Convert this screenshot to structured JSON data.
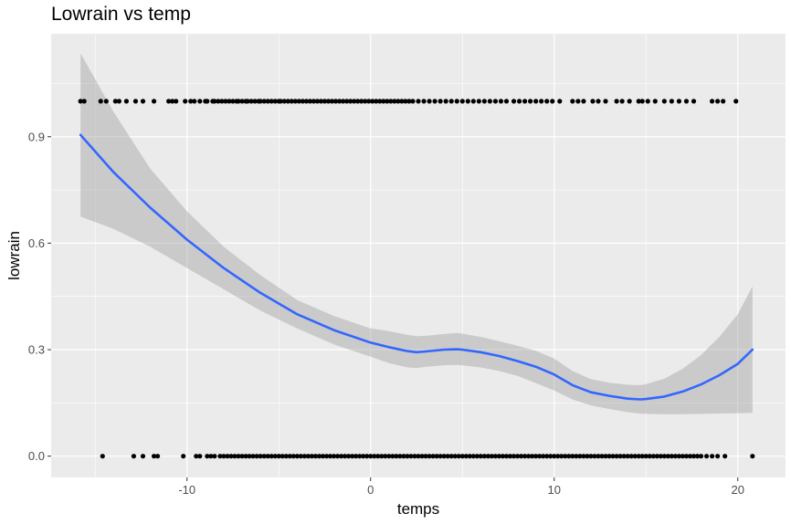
{
  "chart_data": {
    "type": "scatter",
    "title": "Lowrain vs temp",
    "xlabel": "temps",
    "ylabel": "lowrain",
    "xlim": [
      -17.4,
      22.6
    ],
    "ylim": [
      -0.06,
      1.19
    ],
    "x_ticks": [
      -10,
      0,
      10,
      20
    ],
    "x_tick_labels": [
      "-10",
      "0",
      "10",
      "20"
    ],
    "y_ticks": [
      0.0,
      0.3,
      0.6,
      0.9
    ],
    "y_tick_labels": [
      "0.0",
      "0.3",
      "0.6",
      "0.9"
    ],
    "grid": true,
    "legend": "none",
    "colors": {
      "panel": "#ebebeb",
      "grid": "#ffffff",
      "points": "#000000",
      "smooth_line": "#3366ff",
      "ribbon": "#999999"
    },
    "points_y1": [
      -15.8,
      -15.6,
      -14.7,
      -14.4,
      -13.9,
      -13.7,
      -13.3,
      -12.8,
      -12.4,
      -11.8,
      -11.0,
      -10.8,
      -10.6,
      -10.1,
      -9.8,
      -9.6,
      -9.3,
      -9.0,
      -8.9,
      -8.6,
      -8.5,
      -8.3,
      -8.1,
      -7.9,
      -7.7,
      -7.5,
      -7.3,
      -7.2,
      -7.0,
      -6.8,
      -6.7,
      -6.5,
      -6.3,
      -6.1,
      -6.0,
      -5.8,
      -5.6,
      -5.4,
      -5.2,
      -5.0,
      -4.9,
      -4.7,
      -4.5,
      -4.3,
      -4.1,
      -3.9,
      -3.7,
      -3.5,
      -3.3,
      -3.1,
      -2.9,
      -2.7,
      -2.5,
      -2.3,
      -2.1,
      -1.9,
      -1.7,
      -1.5,
      -1.3,
      -1.1,
      -0.9,
      -0.7,
      -0.5,
      -0.3,
      -0.1,
      0.1,
      0.3,
      0.5,
      0.7,
      0.9,
      1.1,
      1.3,
      1.5,
      1.7,
      1.9,
      2.1,
      2.3,
      2.6,
      2.9,
      3.2,
      3.5,
      3.8,
      4.1,
      4.4,
      4.7,
      5.0,
      5.3,
      5.6,
      5.9,
      6.2,
      6.5,
      6.8,
      7.1,
      7.4,
      7.8,
      8.1,
      8.4,
      8.7,
      9.0,
      9.3,
      9.6,
      9.9,
      10.3,
      11.0,
      11.3,
      11.6,
      12.1,
      12.4,
      12.8,
      13.4,
      13.7,
      14.1,
      14.6,
      14.8,
      15.1,
      15.5,
      16.0,
      16.4,
      16.8,
      17.2,
      17.6,
      18.6,
      18.9,
      19.2,
      19.9
    ],
    "points_y0": [
      -14.6,
      -12.9,
      -12.4,
      -11.8,
      -11.6,
      -10.2,
      -9.5,
      -9.3,
      -8.9,
      -8.7,
      -8.5,
      -8.2,
      -8.0,
      -7.8,
      -7.6,
      -7.4,
      -7.2,
      -7.0,
      -6.8,
      -6.6,
      -6.4,
      -6.2,
      -6.0,
      -5.8,
      -5.6,
      -5.4,
      -5.2,
      -5.0,
      -4.8,
      -4.6,
      -4.4,
      -4.2,
      -4.0,
      -3.8,
      -3.6,
      -3.4,
      -3.2,
      -3.0,
      -2.8,
      -2.6,
      -2.4,
      -2.2,
      -2.0,
      -1.8,
      -1.6,
      -1.4,
      -1.2,
      -1.0,
      -0.8,
      -0.6,
      -0.4,
      -0.2,
      0.0,
      0.2,
      0.4,
      0.6,
      0.8,
      1.0,
      1.2,
      1.4,
      1.6,
      1.8,
      2.0,
      2.2,
      2.4,
      2.6,
      2.8,
      3.0,
      3.2,
      3.4,
      3.6,
      3.8,
      4.0,
      4.2,
      4.4,
      4.6,
      4.8,
      5.0,
      5.2,
      5.4,
      5.6,
      5.8,
      6.0,
      6.2,
      6.4,
      6.6,
      6.8,
      7.0,
      7.2,
      7.4,
      7.6,
      7.8,
      8.0,
      8.2,
      8.4,
      8.6,
      8.8,
      9.0,
      9.2,
      9.4,
      9.6,
      9.8,
      10.0,
      10.2,
      10.4,
      10.6,
      10.8,
      11.0,
      11.2,
      11.4,
      11.6,
      11.8,
      12.0,
      12.2,
      12.4,
      12.6,
      12.8,
      13.0,
      13.2,
      13.4,
      13.6,
      13.8,
      14.0,
      14.2,
      14.4,
      14.6,
      14.8,
      15.0,
      15.2,
      15.4,
      15.6,
      15.8,
      16.0,
      16.2,
      16.4,
      16.6,
      16.8,
      17.0,
      17.2,
      17.4,
      17.6,
      17.8,
      18.0,
      18.3,
      18.6,
      18.9,
      19.3,
      20.8
    ],
    "smooth": {
      "x": [
        -15.8,
        -14,
        -12,
        -10,
        -8,
        -6,
        -4,
        -2,
        0,
        1,
        2,
        2.5,
        3,
        4,
        4.7,
        5,
        6,
        7,
        8,
        9,
        10,
        11,
        12,
        13,
        14,
        14.7,
        15,
        16,
        17,
        18,
        19,
        20,
        20.8
      ],
      "y": [
        0.905,
        0.8,
        0.7,
        0.61,
        0.53,
        0.46,
        0.4,
        0.355,
        0.32,
        0.307,
        0.296,
        0.293,
        0.295,
        0.3,
        0.301,
        0.3,
        0.293,
        0.282,
        0.268,
        0.252,
        0.23,
        0.2,
        0.18,
        0.17,
        0.162,
        0.16,
        0.161,
        0.168,
        0.182,
        0.202,
        0.228,
        0.26,
        0.3
      ],
      "lower": [
        0.675,
        0.64,
        0.59,
        0.53,
        0.47,
        0.41,
        0.36,
        0.315,
        0.28,
        0.262,
        0.25,
        0.248,
        0.252,
        0.256,
        0.257,
        0.256,
        0.25,
        0.24,
        0.226,
        0.206,
        0.185,
        0.16,
        0.143,
        0.133,
        0.124,
        0.12,
        0.119,
        0.118,
        0.118,
        0.119,
        0.12,
        0.121,
        0.122
      ],
      "upper": [
        1.135,
        0.97,
        0.81,
        0.69,
        0.59,
        0.51,
        0.44,
        0.395,
        0.36,
        0.352,
        0.342,
        0.338,
        0.339,
        0.344,
        0.347,
        0.345,
        0.336,
        0.324,
        0.311,
        0.297,
        0.275,
        0.24,
        0.217,
        0.207,
        0.201,
        0.2,
        0.203,
        0.218,
        0.246,
        0.285,
        0.336,
        0.4,
        0.478
      ]
    }
  }
}
